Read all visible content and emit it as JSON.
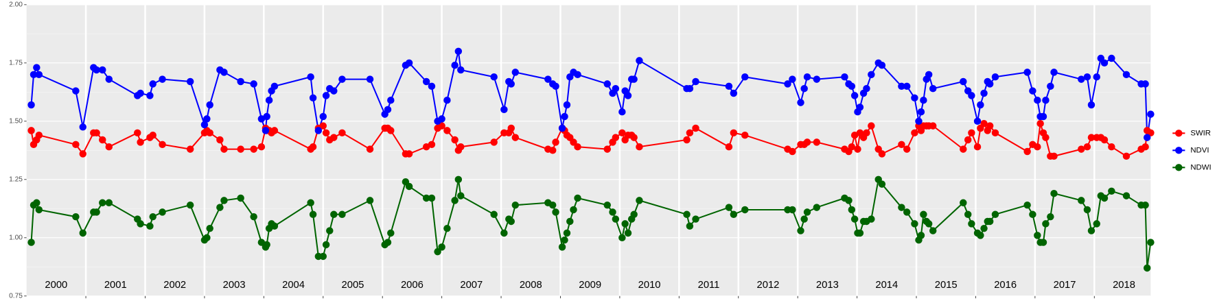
{
  "chart_data": {
    "type": "line",
    "x": [
      2000.08,
      2000.12,
      2000.17,
      2000.21,
      2000.83,
      2000.95,
      2001.13,
      2001.18,
      2001.28,
      2001.39,
      2001.87,
      2001.92,
      2002.08,
      2002.13,
      2002.29,
      2002.76,
      2003.0,
      2003.04,
      2003.09,
      2003.26,
      2003.33,
      2003.61,
      2003.83,
      2003.96,
      2004.03,
      2004.05,
      2004.09,
      2004.13,
      2004.18,
      2004.79,
      2004.83,
      2004.92,
      2005.0,
      2005.05,
      2005.11,
      2005.18,
      2005.32,
      2005.79,
      2006.04,
      2006.09,
      2006.14,
      2006.39,
      2006.45,
      2006.74,
      2006.83,
      2006.93,
      2007.0,
      2007.09,
      2007.22,
      2007.28,
      2007.32,
      2007.88,
      2008.05,
      2008.13,
      2008.17,
      2008.24,
      2008.79,
      2008.87,
      2008.92,
      2009.03,
      2009.07,
      2009.11,
      2009.16,
      2009.22,
      2009.29,
      2009.79,
      2009.88,
      2009.93,
      2010.04,
      2010.09,
      2010.14,
      2010.2,
      2010.24,
      2010.33,
      2011.13,
      2011.18,
      2011.28,
      2011.84,
      2011.92,
      2012.11,
      2012.83,
      2012.91,
      2013.05,
      2013.11,
      2013.16,
      2013.32,
      2013.79,
      2013.86,
      2013.91,
      2013.96,
      2014.01,
      2014.05,
      2014.11,
      2014.16,
      2014.24,
      2014.36,
      2014.42,
      2014.75,
      2014.84,
      2014.97,
      2015.04,
      2015.08,
      2015.12,
      2015.17,
      2015.21,
      2015.28,
      2015.79,
      2015.87,
      2015.93,
      2016.03,
      2016.08,
      2016.14,
      2016.2,
      2016.24,
      2016.33,
      2016.87,
      2016.96,
      2017.04,
      2017.09,
      2017.14,
      2017.18,
      2017.26,
      2017.32,
      2017.78,
      2017.88,
      2017.95,
      2018.04,
      2018.11,
      2018.17,
      2018.29,
      2018.54,
      2018.79,
      2018.86,
      2018.89,
      2018.95
    ],
    "series": [
      {
        "name": "SWIR",
        "color": "#ff0000",
        "values": [
          1.46,
          1.4,
          1.42,
          1.44,
          1.4,
          1.36,
          1.45,
          1.45,
          1.42,
          1.39,
          1.45,
          1.41,
          1.43,
          1.44,
          1.4,
          1.38,
          1.45,
          1.46,
          1.45,
          1.42,
          1.38,
          1.38,
          1.38,
          1.39,
          1.47,
          1.46,
          1.46,
          1.45,
          1.46,
          1.38,
          1.39,
          1.47,
          1.48,
          1.45,
          1.42,
          1.43,
          1.45,
          1.38,
          1.47,
          1.47,
          1.46,
          1.36,
          1.36,
          1.39,
          1.4,
          1.47,
          1.48,
          1.46,
          1.42,
          1.375,
          1.39,
          1.41,
          1.45,
          1.45,
          1.47,
          1.43,
          1.38,
          1.375,
          1.41,
          1.47,
          1.46,
          1.44,
          1.43,
          1.41,
          1.39,
          1.38,
          1.41,
          1.43,
          1.45,
          1.42,
          1.44,
          1.44,
          1.43,
          1.39,
          1.42,
          1.45,
          1.47,
          1.39,
          1.45,
          1.44,
          1.38,
          1.37,
          1.4,
          1.4,
          1.41,
          1.41,
          1.38,
          1.37,
          1.39,
          1.44,
          1.38,
          1.45,
          1.43,
          1.45,
          1.48,
          1.38,
          1.36,
          1.4,
          1.38,
          1.45,
          1.48,
          1.46,
          1.48,
          1.48,
          1.48,
          1.48,
          1.38,
          1.42,
          1.45,
          1.39,
          1.47,
          1.49,
          1.46,
          1.48,
          1.45,
          1.37,
          1.4,
          1.39,
          1.49,
          1.45,
          1.43,
          1.35,
          1.35,
          1.38,
          1.39,
          1.43,
          1.43,
          1.43,
          1.42,
          1.39,
          1.35,
          1.38,
          1.39,
          1.46,
          1.45
        ]
      },
      {
        "name": "NDVI",
        "color": "#0000ff",
        "values": [
          1.57,
          1.7,
          1.73,
          1.7,
          1.63,
          1.475,
          1.73,
          1.72,
          1.72,
          1.68,
          1.61,
          1.62,
          1.61,
          1.66,
          1.68,
          1.67,
          1.485,
          1.51,
          1.57,
          1.72,
          1.71,
          1.67,
          1.66,
          1.51,
          1.46,
          1.52,
          1.59,
          1.63,
          1.65,
          1.69,
          1.6,
          1.46,
          1.52,
          1.61,
          1.64,
          1.63,
          1.68,
          1.68,
          1.53,
          1.55,
          1.59,
          1.74,
          1.75,
          1.67,
          1.65,
          1.5,
          1.51,
          1.59,
          1.74,
          1.8,
          1.72,
          1.69,
          1.55,
          1.67,
          1.66,
          1.71,
          1.68,
          1.66,
          1.65,
          1.47,
          1.52,
          1.57,
          1.69,
          1.71,
          1.7,
          1.66,
          1.62,
          1.64,
          1.54,
          1.63,
          1.61,
          1.68,
          1.68,
          1.76,
          1.64,
          1.64,
          1.67,
          1.65,
          1.62,
          1.69,
          1.66,
          1.68,
          1.58,
          1.64,
          1.69,
          1.68,
          1.69,
          1.66,
          1.65,
          1.61,
          1.54,
          1.56,
          1.62,
          1.64,
          1.7,
          1.75,
          1.74,
          1.65,
          1.65,
          1.6,
          1.5,
          1.54,
          1.59,
          1.68,
          1.7,
          1.64,
          1.67,
          1.63,
          1.61,
          1.5,
          1.57,
          1.62,
          1.67,
          1.66,
          1.69,
          1.71,
          1.63,
          1.59,
          1.52,
          1.52,
          1.59,
          1.65,
          1.71,
          1.68,
          1.69,
          1.57,
          1.69,
          1.77,
          1.75,
          1.77,
          1.7,
          1.66,
          1.66,
          1.43,
          1.53
        ]
      },
      {
        "name": "NDWI",
        "color": "#006400",
        "values": [
          0.98,
          1.14,
          1.15,
          1.12,
          1.09,
          1.02,
          1.11,
          1.11,
          1.15,
          1.15,
          1.08,
          1.06,
          1.05,
          1.09,
          1.11,
          1.14,
          0.99,
          1.0,
          1.04,
          1.13,
          1.16,
          1.17,
          1.09,
          0.98,
          0.96,
          0.97,
          1.04,
          1.06,
          1.05,
          1.15,
          1.1,
          0.92,
          0.92,
          0.97,
          1.03,
          1.1,
          1.1,
          1.16,
          0.97,
          0.98,
          1.02,
          1.24,
          1.22,
          1.17,
          1.17,
          0.94,
          0.96,
          1.04,
          1.16,
          1.25,
          1.18,
          1.1,
          1.02,
          1.08,
          1.07,
          1.14,
          1.15,
          1.14,
          1.11,
          0.96,
          0.99,
          1.02,
          1.07,
          1.12,
          1.17,
          1.14,
          1.11,
          1.08,
          1.0,
          1.06,
          1.02,
          1.08,
          1.1,
          1.16,
          1.1,
          1.05,
          1.08,
          1.13,
          1.1,
          1.12,
          1.12,
          1.12,
          1.03,
          1.08,
          1.11,
          1.13,
          1.17,
          1.16,
          1.12,
          1.08,
          1.02,
          1.02,
          1.07,
          1.07,
          1.08,
          1.25,
          1.23,
          1.13,
          1.11,
          1.06,
          0.99,
          1.01,
          1.1,
          1.07,
          1.06,
          1.03,
          1.15,
          1.1,
          1.06,
          1.02,
          1.01,
          1.04,
          1.07,
          1.07,
          1.1,
          1.14,
          1.1,
          1.01,
          0.98,
          0.98,
          1.06,
          1.09,
          1.19,
          1.16,
          1.12,
          1.03,
          1.06,
          1.18,
          1.17,
          1.2,
          1.18,
          1.14,
          1.14,
          0.87,
          0.98
        ]
      }
    ],
    "xlim": [
      2000,
      2018.95
    ],
    "xticks": [
      2001,
      2002,
      2003,
      2004,
      2005,
      2006,
      2007,
      2008,
      2009,
      2010,
      2011,
      2012,
      2013,
      2014,
      2015,
      2016,
      2017,
      2018
    ],
    "ylim": [
      0.75,
      2.0
    ],
    "yticks": [
      0.75,
      {
        "value": 1,
        "label": "1.00"
      },
      1.25,
      {
        "value": 1.5,
        "label": "1.50"
      },
      1.75,
      {
        "value": 2,
        "label": "2.00"
      }
    ],
    "annotations": [
      "2000",
      "2001",
      "2002",
      "2003",
      "2004",
      "2005",
      "2006",
      "2007",
      "2008",
      "2009",
      "2010",
      "2011",
      "2012",
      "2013",
      "2014",
      "2015",
      "2016",
      "2017",
      "2018"
    ],
    "grid": true,
    "legend": "right"
  }
}
